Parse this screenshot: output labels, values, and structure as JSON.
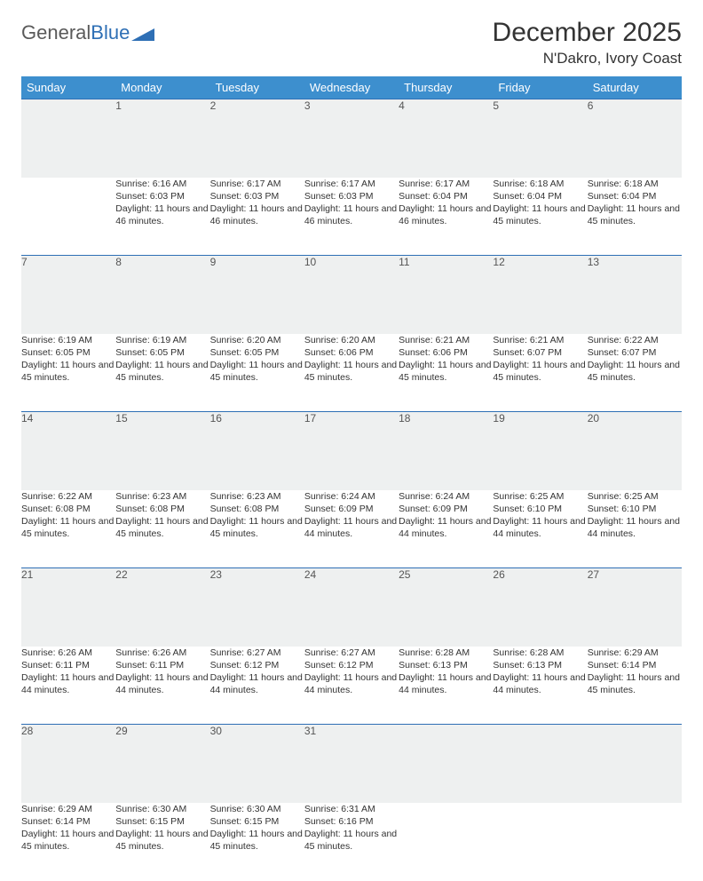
{
  "brand": {
    "part1": "General",
    "part2": "Blue"
  },
  "colors": {
    "header_bg": "#3d8fce",
    "header_text": "#ffffff",
    "daynum_bg": "#eef0f0",
    "rule": "#2e6fb5",
    "text": "#333333",
    "background": "#ffffff"
  },
  "title": "December 2025",
  "subtitle": "N'Dakro, Ivory Coast",
  "weekdays": [
    "Sunday",
    "Monday",
    "Tuesday",
    "Wednesday",
    "Thursday",
    "Friday",
    "Saturday"
  ],
  "grid": {
    "first_weekday_index": 1,
    "days_in_month": 31
  },
  "days": {
    "1": {
      "sunrise": "6:16 AM",
      "sunset": "6:03 PM",
      "daylight": "11 hours and 46 minutes."
    },
    "2": {
      "sunrise": "6:17 AM",
      "sunset": "6:03 PM",
      "daylight": "11 hours and 46 minutes."
    },
    "3": {
      "sunrise": "6:17 AM",
      "sunset": "6:03 PM",
      "daylight": "11 hours and 46 minutes."
    },
    "4": {
      "sunrise": "6:17 AM",
      "sunset": "6:04 PM",
      "daylight": "11 hours and 46 minutes."
    },
    "5": {
      "sunrise": "6:18 AM",
      "sunset": "6:04 PM",
      "daylight": "11 hours and 45 minutes."
    },
    "6": {
      "sunrise": "6:18 AM",
      "sunset": "6:04 PM",
      "daylight": "11 hours and 45 minutes."
    },
    "7": {
      "sunrise": "6:19 AM",
      "sunset": "6:05 PM",
      "daylight": "11 hours and 45 minutes."
    },
    "8": {
      "sunrise": "6:19 AM",
      "sunset": "6:05 PM",
      "daylight": "11 hours and 45 minutes."
    },
    "9": {
      "sunrise": "6:20 AM",
      "sunset": "6:05 PM",
      "daylight": "11 hours and 45 minutes."
    },
    "10": {
      "sunrise": "6:20 AM",
      "sunset": "6:06 PM",
      "daylight": "11 hours and 45 minutes."
    },
    "11": {
      "sunrise": "6:21 AM",
      "sunset": "6:06 PM",
      "daylight": "11 hours and 45 minutes."
    },
    "12": {
      "sunrise": "6:21 AM",
      "sunset": "6:07 PM",
      "daylight": "11 hours and 45 minutes."
    },
    "13": {
      "sunrise": "6:22 AM",
      "sunset": "6:07 PM",
      "daylight": "11 hours and 45 minutes."
    },
    "14": {
      "sunrise": "6:22 AM",
      "sunset": "6:08 PM",
      "daylight": "11 hours and 45 minutes."
    },
    "15": {
      "sunrise": "6:23 AM",
      "sunset": "6:08 PM",
      "daylight": "11 hours and 45 minutes."
    },
    "16": {
      "sunrise": "6:23 AM",
      "sunset": "6:08 PM",
      "daylight": "11 hours and 45 minutes."
    },
    "17": {
      "sunrise": "6:24 AM",
      "sunset": "6:09 PM",
      "daylight": "11 hours and 44 minutes."
    },
    "18": {
      "sunrise": "6:24 AM",
      "sunset": "6:09 PM",
      "daylight": "11 hours and 44 minutes."
    },
    "19": {
      "sunrise": "6:25 AM",
      "sunset": "6:10 PM",
      "daylight": "11 hours and 44 minutes."
    },
    "20": {
      "sunrise": "6:25 AM",
      "sunset": "6:10 PM",
      "daylight": "11 hours and 44 minutes."
    },
    "21": {
      "sunrise": "6:26 AM",
      "sunset": "6:11 PM",
      "daylight": "11 hours and 44 minutes."
    },
    "22": {
      "sunrise": "6:26 AM",
      "sunset": "6:11 PM",
      "daylight": "11 hours and 44 minutes."
    },
    "23": {
      "sunrise": "6:27 AM",
      "sunset": "6:12 PM",
      "daylight": "11 hours and 44 minutes."
    },
    "24": {
      "sunrise": "6:27 AM",
      "sunset": "6:12 PM",
      "daylight": "11 hours and 44 minutes."
    },
    "25": {
      "sunrise": "6:28 AM",
      "sunset": "6:13 PM",
      "daylight": "11 hours and 44 minutes."
    },
    "26": {
      "sunrise": "6:28 AM",
      "sunset": "6:13 PM",
      "daylight": "11 hours and 44 minutes."
    },
    "27": {
      "sunrise": "6:29 AM",
      "sunset": "6:14 PM",
      "daylight": "11 hours and 45 minutes."
    },
    "28": {
      "sunrise": "6:29 AM",
      "sunset": "6:14 PM",
      "daylight": "11 hours and 45 minutes."
    },
    "29": {
      "sunrise": "6:30 AM",
      "sunset": "6:15 PM",
      "daylight": "11 hours and 45 minutes."
    },
    "30": {
      "sunrise": "6:30 AM",
      "sunset": "6:15 PM",
      "daylight": "11 hours and 45 minutes."
    },
    "31": {
      "sunrise": "6:31 AM",
      "sunset": "6:16 PM",
      "daylight": "11 hours and 45 minutes."
    }
  },
  "labels": {
    "sunrise_prefix": "Sunrise: ",
    "sunset_prefix": "Sunset: ",
    "daylight_prefix": "Daylight: "
  }
}
